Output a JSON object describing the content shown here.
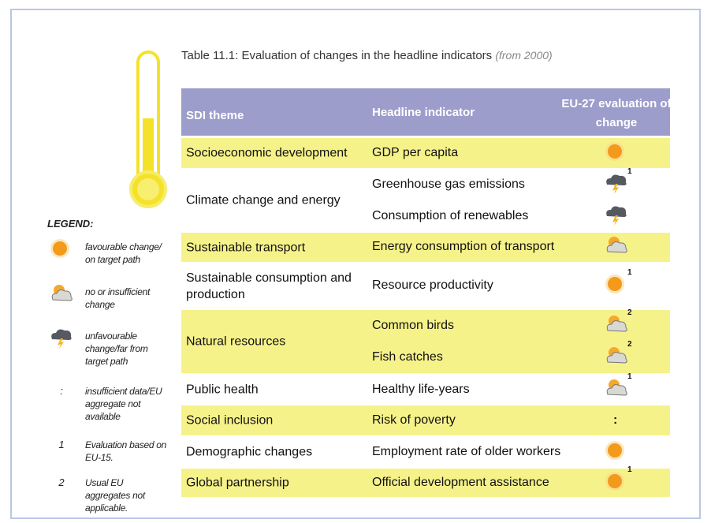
{
  "title": "Table 11.1: Evaluation of changes in the headline indicators",
  "title_note": "(from 2000)",
  "table": {
    "header": [
      "SDI theme",
      "Headline indicator",
      "EU-27 evaluation of change"
    ],
    "rows": [
      {
        "theme": "Socioeconomic development",
        "indicators": [
          {
            "name": "GDP per capita"
          }
        ]
      },
      {
        "theme": "Climate change and energy",
        "indicators": [
          {
            "name": "Greenhouse gas emissions",
            "note": "1"
          },
          {
            "name": "Consumption of renewables"
          }
        ]
      },
      {
        "theme": "Sustainable transport",
        "indicators": [
          {
            "name": "Energy consumption of transport"
          }
        ]
      },
      {
        "theme": "Sustainable consumption and production",
        "indicators": [
          {
            "name": "Resource productivity",
            "note": "1"
          }
        ]
      },
      {
        "theme": "Natural resources",
        "indicators": [
          {
            "name": "Common birds",
            "note": "2"
          },
          {
            "name": "Fish catches",
            "note": "2"
          }
        ]
      },
      {
        "theme": "Public health",
        "indicators": [
          {
            "name": "Healthy life-years",
            "note": "1"
          }
        ]
      },
      {
        "theme": "Social inclusion",
        "indicators": [
          {
            "name": "Risk of poverty",
            "evaluation": ":"
          }
        ]
      },
      {
        "theme": "Demographic changes",
        "indicators": [
          {
            "name": "Employment rate of older workers"
          }
        ]
      },
      {
        "theme": "Global partnership",
        "indicators": [
          {
            "name": "Official development assistance",
            "note": "1"
          }
        ]
      }
    ]
  },
  "legend": {
    "title": "LEGEND:",
    "items": [
      {
        "text": "favourable change/ on target path"
      },
      {
        "text": "no or insufficient change"
      },
      {
        "text": "unfavourable change/far from target path"
      },
      {
        "symbol": ":",
        "text": "insufficient data/EU aggregate not available"
      },
      {
        "symbol": "1",
        "text": "Evaluation based on EU-15."
      },
      {
        "symbol": "2",
        "text": "Usual EU aggregates not applicable."
      }
    ]
  }
}
